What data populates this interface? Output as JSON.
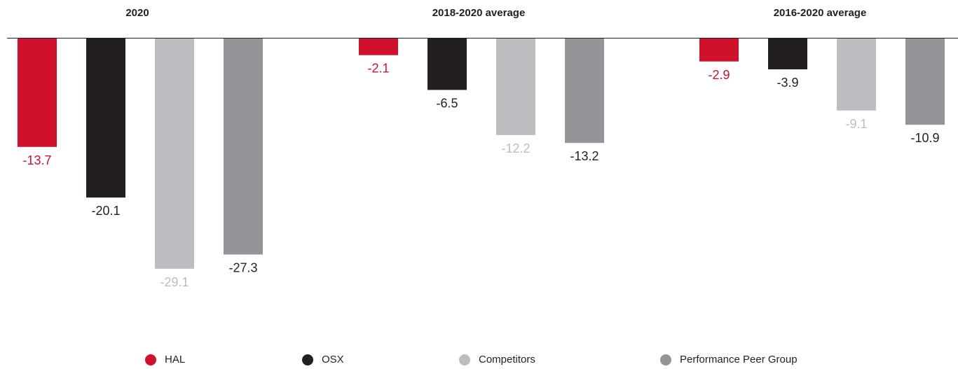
{
  "chart_data": {
    "type": "bar",
    "categories": [
      "2020",
      "2018-2020 average",
      "2016-2020 average"
    ],
    "series": [
      {
        "name": "HAL",
        "values": [
          -13.7,
          -2.1,
          -2.9
        ],
        "color": "#d0112b",
        "label_color": "#d0112b"
      },
      {
        "name": "OSX",
        "values": [
          -20.1,
          -6.5,
          -3.9
        ],
        "color": "#231f20",
        "label_color": "#231f20"
      },
      {
        "name": "Competitors",
        "values": [
          -29.1,
          -12.2,
          -9.1
        ],
        "color": "#bcbdc0",
        "label_color": "#bcbdc0"
      },
      {
        "name": "Performance Peer Group",
        "values": [
          -27.3,
          -13.2,
          -10.9
        ],
        "color": "#939598",
        "label_color": "#231f20"
      }
    ],
    "value_labels": [
      [
        "-13.7",
        "-2.1",
        "-2.9"
      ],
      [
        "-20.1",
        "-6.5",
        "-3.9"
      ],
      [
        "-29.1",
        "-12.2",
        "-9.1"
      ],
      [
        "-27.3",
        "-13.2",
        "-10.9"
      ]
    ],
    "ylim": [
      -30,
      0
    ],
    "grid": false,
    "legend_position": "bottom"
  }
}
